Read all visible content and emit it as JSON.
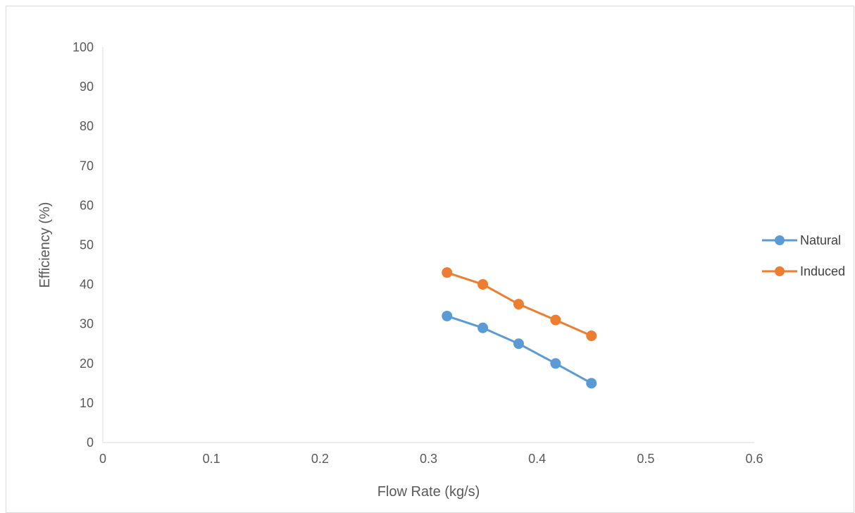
{
  "chart_data": {
    "type": "line",
    "title": "",
    "xlabel": "Flow Rate (kg/s)",
    "ylabel": "Efficiency (%)",
    "xlim": [
      0,
      0.6
    ],
    "ylim": [
      0,
      100
    ],
    "x_ticks": [
      "0",
      "0.1",
      "0.2",
      "0.3",
      "0.4",
      "0.5",
      "0.6"
    ],
    "y_ticks": [
      "0",
      "10",
      "20",
      "30",
      "40",
      "50",
      "60",
      "70",
      "80",
      "90",
      "100"
    ],
    "x_tick_values": [
      0,
      0.1,
      0.2,
      0.3,
      0.4,
      0.5,
      0.6
    ],
    "y_tick_values": [
      0,
      10,
      20,
      30,
      40,
      50,
      60,
      70,
      80,
      90,
      100
    ],
    "grid": false,
    "legend_position": "right",
    "series": [
      {
        "name": "Natural",
        "color": "#5b9bd5",
        "x": [
          0.317,
          0.35,
          0.383,
          0.417,
          0.45
        ],
        "y": [
          32,
          29,
          25,
          20,
          15
        ]
      },
      {
        "name": "Induced",
        "color": "#ed7d31",
        "x": [
          0.317,
          0.35,
          0.383,
          0.417,
          0.45
        ],
        "y": [
          43,
          40,
          35,
          31,
          27
        ]
      }
    ]
  }
}
